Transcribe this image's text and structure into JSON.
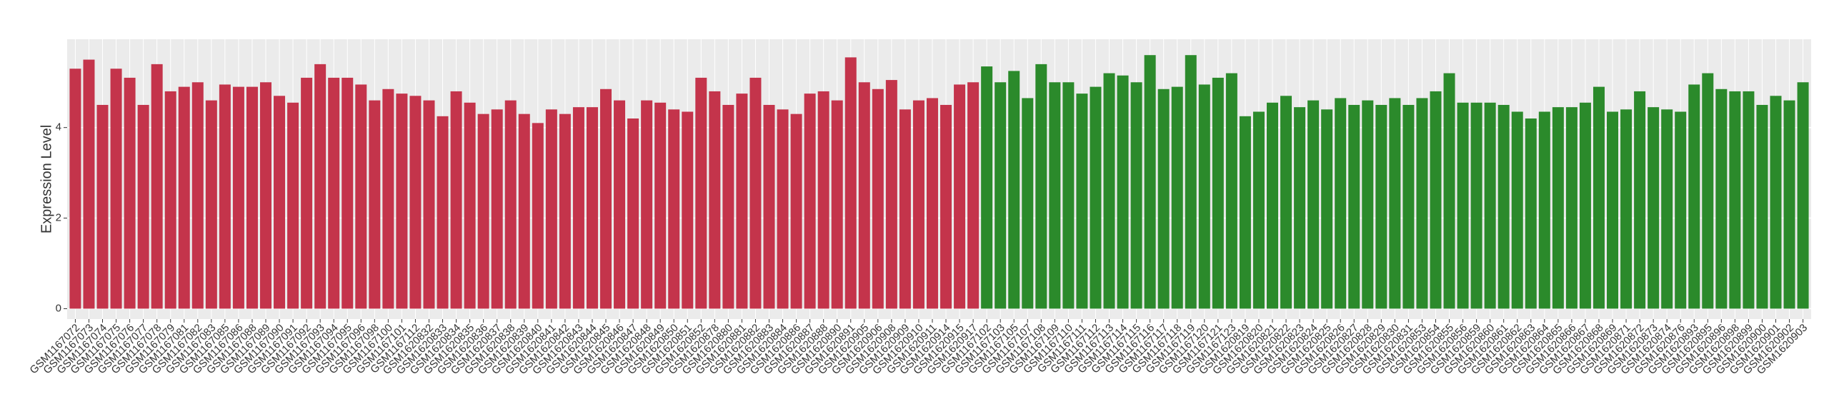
{
  "chart_data": {
    "type": "bar",
    "y_label": "Expression Level",
    "categories": [
      "GSM1167072",
      "GSM1167073",
      "GSM1167074",
      "GSM1167075",
      "GSM1167076",
      "GSM1167077",
      "GSM1167078",
      "GSM1167079",
      "GSM1167081",
      "GSM1167082",
      "GSM1167083",
      "GSM1167085",
      "GSM1167086",
      "GSM1167088",
      "GSM1167089",
      "GSM1167090",
      "GSM1167091",
      "GSM1167092",
      "GSM1167093",
      "GSM1167094",
      "GSM1167095",
      "GSM1167096",
      "GSM1167098",
      "GSM1167100",
      "GSM1167101",
      "GSM1167112",
      "GSM1620832",
      "GSM1620833",
      "GSM1620834",
      "GSM1620835",
      "GSM1620836",
      "GSM1620837",
      "GSM1620838",
      "GSM1620839",
      "GSM1620840",
      "GSM1620841",
      "GSM1620842",
      "GSM1620843",
      "GSM1620844",
      "GSM1620845",
      "GSM1620846",
      "GSM1620847",
      "GSM1620848",
      "GSM1620849",
      "GSM1620850",
      "GSM1620851",
      "GSM1620852",
      "GSM1620878",
      "GSM1620880",
      "GSM1620881",
      "GSM1620882",
      "GSM1620883",
      "GSM1620884",
      "GSM1620886",
      "GSM1620887",
      "GSM1620888",
      "GSM1620890",
      "GSM1620891",
      "GSM1620905",
      "GSM1620906",
      "GSM1620908",
      "GSM1620909",
      "GSM1620910",
      "GSM1620911",
      "GSM1620914",
      "GSM1620915",
      "GSM1620917",
      "GSM1167102",
      "GSM1167103",
      "GSM1167105",
      "GSM1167107",
      "GSM1167108",
      "GSM1167109",
      "GSM1167110",
      "GSM1167111",
      "GSM1167112",
      "GSM1167113",
      "GSM1167114",
      "GSM1167115",
      "GSM1167116",
      "GSM1167117",
      "GSM1167118",
      "GSM1167119",
      "GSM1167120",
      "GSM1167121",
      "GSM1167123",
      "GSM1620819",
      "GSM1620820",
      "GSM1620821",
      "GSM1620822",
      "GSM1620823",
      "GSM1620824",
      "GSM1620825",
      "GSM1620826",
      "GSM1620827",
      "GSM1620828",
      "GSM1620829",
      "GSM1620830",
      "GSM1620831",
      "GSM1620853",
      "GSM1620854",
      "GSM1620855",
      "GSM1620856",
      "GSM1620859",
      "GSM1620860",
      "GSM1620861",
      "GSM1620862",
      "GSM1620863",
      "GSM1620864",
      "GSM1620865",
      "GSM1620866",
      "GSM1620867",
      "GSM1620868",
      "GSM1620869",
      "GSM1620871",
      "GSM1620872",
      "GSM1620873",
      "GSM1620874",
      "GSM1620876",
      "GSM1620893",
      "GSM1620895",
      "GSM1620896",
      "GSM1620898",
      "GSM1620899",
      "GSM1620900",
      "GSM1620901",
      "GSM1620902",
      "GSM1620903"
    ],
    "series": [
      {
        "color": "#c4344b",
        "values": [
          5.3,
          5.5,
          4.5,
          5.3,
          5.1,
          4.5,
          5.4,
          4.8,
          4.9,
          5.0,
          4.6,
          4.95,
          4.9,
          4.9,
          5.0,
          4.7,
          4.55,
          5.1,
          5.4,
          5.1,
          5.1,
          4.95,
          4.6,
          4.85,
          4.75,
          4.7,
          4.6,
          4.25,
          4.8,
          4.55,
          4.3,
          4.4,
          4.6,
          4.3,
          4.1,
          4.4,
          4.3,
          4.45,
          4.45,
          4.85,
          4.6,
          4.2,
          4.6,
          4.55,
          4.4,
          4.35,
          5.1,
          4.8,
          4.5,
          4.75,
          5.1,
          4.5,
          4.4,
          4.3,
          4.75,
          4.8,
          4.6,
          5.55,
          5.0,
          4.85,
          5.05,
          4.4,
          4.6,
          4.65,
          4.5,
          4.95,
          5.0,
          null,
          null,
          null,
          null,
          null,
          null,
          null,
          null,
          null,
          null,
          null,
          null,
          null,
          null,
          null,
          null,
          null,
          null,
          null,
          null,
          null,
          null,
          null,
          null,
          null,
          null,
          null,
          null,
          null,
          null,
          null,
          null,
          null,
          null,
          null,
          null,
          null,
          null,
          null,
          null,
          null,
          null,
          null,
          null,
          null,
          null,
          null,
          null,
          null,
          null,
          null,
          null,
          null,
          null,
          null,
          null,
          null,
          null,
          null,
          null,
          null
        ]
      },
      {
        "color": "#2b8a2b",
        "values": [
          null,
          null,
          null,
          null,
          null,
          null,
          null,
          null,
          null,
          null,
          null,
          null,
          null,
          null,
          null,
          null,
          null,
          null,
          null,
          null,
          null,
          null,
          null,
          null,
          null,
          null,
          null,
          null,
          null,
          null,
          null,
          null,
          null,
          null,
          null,
          null,
          null,
          null,
          null,
          null,
          null,
          null,
          null,
          null,
          null,
          null,
          null,
          null,
          null,
          null,
          null,
          null,
          null,
          null,
          null,
          null,
          null,
          null,
          null,
          null,
          null,
          null,
          null,
          null,
          null,
          null,
          null,
          5.35,
          5.0,
          5.25,
          4.65,
          5.4,
          5.0,
          5.0,
          4.75,
          4.9,
          5.2,
          5.15,
          5.0,
          5.6,
          4.85,
          4.9,
          5.6,
          4.95,
          5.1,
          5.2,
          4.25,
          4.35,
          4.55,
          4.7,
          4.45,
          4.6,
          4.4,
          4.65,
          4.5,
          4.6,
          4.5,
          4.65,
          4.5,
          4.65,
          4.8,
          5.2,
          4.55,
          4.55,
          4.55,
          4.5,
          4.35,
          4.2,
          4.35,
          4.45,
          4.45,
          4.55,
          4.9,
          4.35,
          4.4,
          4.8,
          4.45,
          4.4,
          4.35,
          4.95,
          5.2,
          4.85,
          4.8,
          4.8,
          4.5,
          4.7,
          4.6,
          5.0
        ]
      }
    ],
    "ylim": [
      -0.23,
      5.95
    ],
    "yticks": [
      0,
      2,
      4
    ],
    "grid": true
  }
}
